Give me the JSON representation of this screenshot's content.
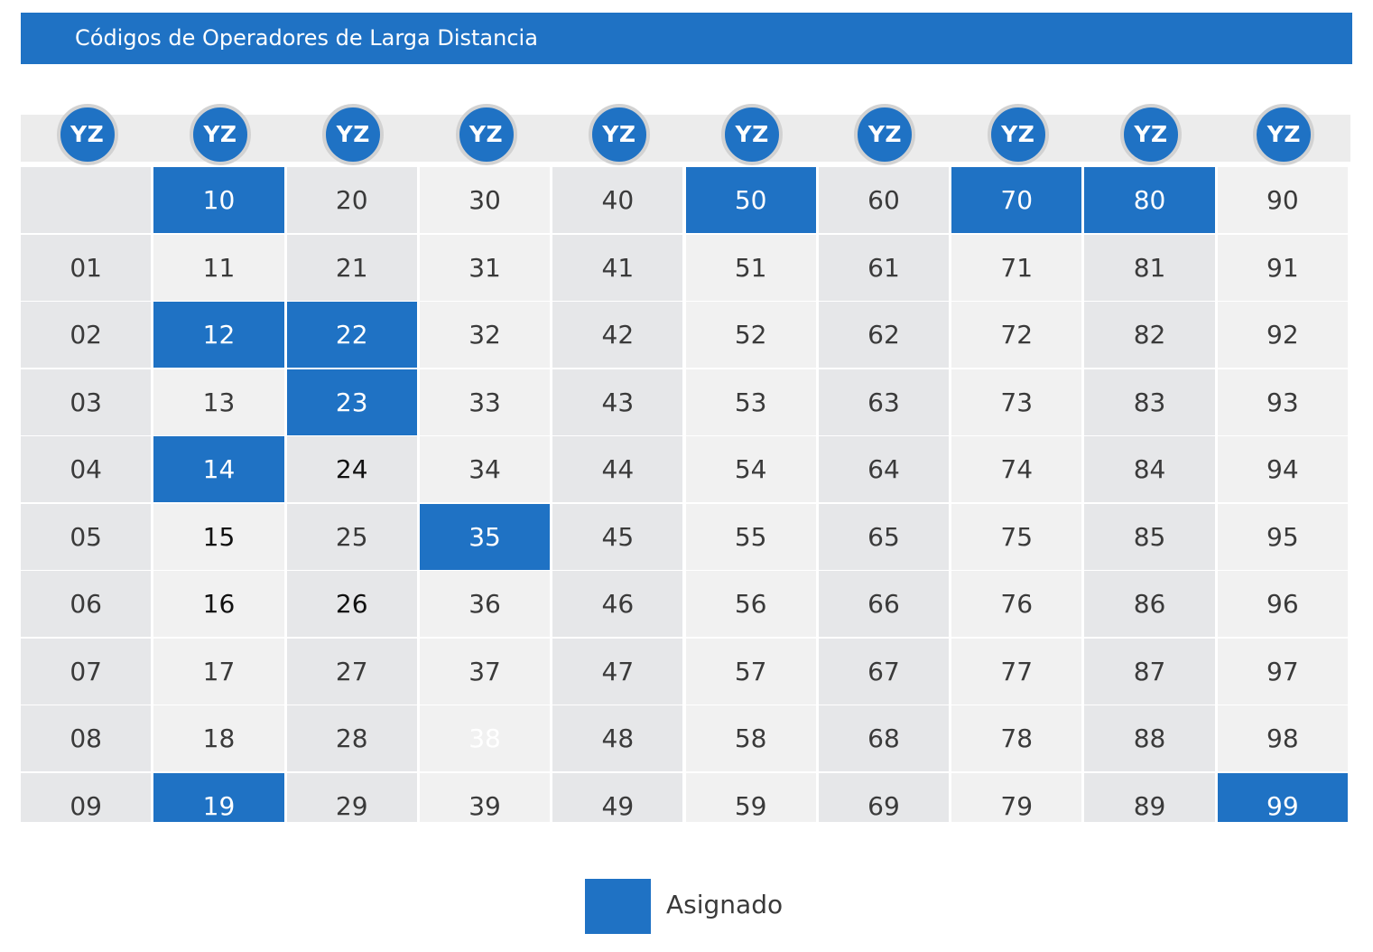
{
  "title": "Códigos de Operadores de Larga Distancia",
  "column_badge": "YZ",
  "colors": {
    "assigned": "#1f72c4",
    "cell_dark": "#e6e7e9",
    "cell_light": "#f1f1f1"
  },
  "grid": {
    "rows": [
      [
        "",
        "10",
        "20",
        "30",
        "40",
        "50",
        "60",
        "70",
        "80",
        "90"
      ],
      [
        "01",
        "11",
        "21",
        "31",
        "41",
        "51",
        "61",
        "71",
        "81",
        "91"
      ],
      [
        "02",
        "12",
        "22",
        "32",
        "42",
        "52",
        "62",
        "72",
        "82",
        "92"
      ],
      [
        "03",
        "13",
        "23",
        "33",
        "43",
        "53",
        "63",
        "73",
        "83",
        "93"
      ],
      [
        "04",
        "14",
        "24",
        "34",
        "44",
        "54",
        "64",
        "74",
        "84",
        "94"
      ],
      [
        "05",
        "15",
        "25",
        "35",
        "45",
        "55",
        "65",
        "75",
        "85",
        "95"
      ],
      [
        "06",
        "16",
        "26",
        "36",
        "46",
        "56",
        "66",
        "76",
        "86",
        "96"
      ],
      [
        "07",
        "17",
        "27",
        "37",
        "47",
        "57",
        "67",
        "77",
        "87",
        "97"
      ],
      [
        "08",
        "18",
        "28",
        "38",
        "48",
        "58",
        "68",
        "78",
        "88",
        "98"
      ],
      [
        "09",
        "19",
        "29",
        "39",
        "49",
        "59",
        "69",
        "79",
        "89",
        "99"
      ]
    ],
    "assigned": [
      "10",
      "12",
      "14",
      "19",
      "22",
      "23",
      "35",
      "50",
      "70",
      "80",
      "99"
    ],
    "emphasized": [
      "15",
      "16",
      "24",
      "26"
    ],
    "faded": [
      "38"
    ]
  },
  "legend": {
    "label": "Asignado"
  }
}
